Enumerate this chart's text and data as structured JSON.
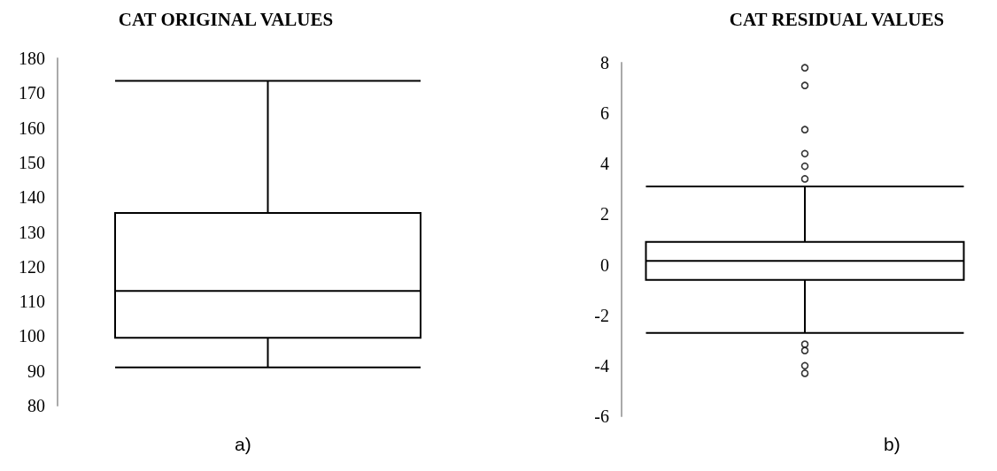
{
  "chart_data": [
    {
      "type": "box",
      "title": "CAT ORIGINAL VALUES",
      "annotations": [
        "a)"
      ],
      "categories": [
        null
      ],
      "ylim": [
        80,
        180
      ],
      "yticks": [
        80,
        90,
        100,
        110,
        120,
        130,
        140,
        150,
        160,
        170,
        180
      ],
      "grid": false,
      "tick_labels": "y",
      "series": [
        {
          "color": "#000000",
          "boxes": [
            {
              "low": 91,
              "q1": 99.5,
              "median": 113,
              "q3": 135.5,
              "high": 173.5
            }
          ]
        }
      ]
    },
    {
      "type": "box",
      "title": "CAT RESIDUAL VALUES",
      "annotations": [
        "b)"
      ],
      "categories": [
        null
      ],
      "ylim": [
        -6,
        8
      ],
      "yticks": [
        -6,
        -4,
        -2,
        0,
        2,
        4,
        6,
        8
      ],
      "grid": false,
      "tick_labels": "y",
      "series": [
        {
          "color": "#000000",
          "boxes": [
            {
              "low": -2.7,
              "q1": -0.6,
              "median": 0.15,
              "q3": 0.9,
              "high": 3.1,
              "outliers": [
                7.8,
                7.1,
                5.35,
                4.4,
                3.9,
                3.4,
                -3.15,
                -3.4,
                -4.0,
                -4.3
              ]
            }
          ]
        }
      ]
    }
  ]
}
